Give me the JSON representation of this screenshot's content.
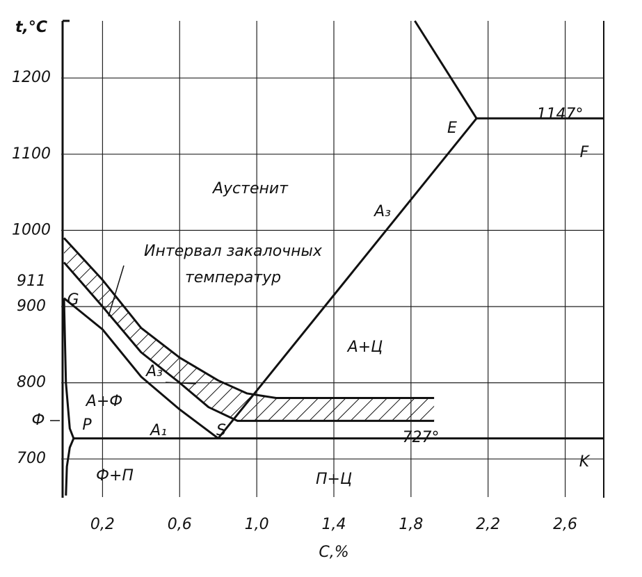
{
  "chart_data": {
    "type": "line",
    "y_label": "t,°C",
    "x_label": "C,%",
    "xlim": [
      0,
      2.8
    ],
    "ylim": [
      650,
      1275
    ],
    "xticks": [
      {
        "value": 0.2,
        "label": "0,2"
      },
      {
        "value": 0.6,
        "label": "0,6"
      },
      {
        "value": 1.0,
        "label": "1,0"
      },
      {
        "value": 1.4,
        "label": "1,4"
      },
      {
        "value": 1.8,
        "label": "1,8"
      },
      {
        "value": 2.2,
        "label": "2,2"
      },
      {
        "value": 2.6,
        "label": "2,6"
      }
    ],
    "yticks": [
      700,
      800,
      900,
      1000,
      1100,
      1200
    ],
    "grid": true,
    "color": "#111111",
    "series": [
      {
        "x": [
          0,
          0.2,
          0.4,
          0.6,
          0.8,
          0.95,
          1.1,
          1.92
        ],
        "values": [
          990,
          935,
          872,
          833,
          803,
          786,
          780,
          780
        ]
      },
      {
        "x": [
          0,
          0.2,
          0.4,
          0.6,
          0.75,
          0.9,
          1.92
        ],
        "values": [
          958,
          900,
          840,
          800,
          768,
          750,
          750
        ]
      },
      {
        "x": [
          0,
          0.2,
          0.4,
          0.6,
          0.8
        ],
        "values": [
          911,
          870,
          808,
          765,
          727
        ]
      },
      {
        "x": [
          0.8,
          2.14
        ],
        "values": [
          727,
          1147
        ]
      },
      {
        "x": [
          2.14,
          1.82
        ],
        "values": [
          1147,
          1275
        ]
      },
      {
        "x": [
          2.14,
          2.8
        ],
        "values": [
          1147,
          1147
        ]
      },
      {
        "x": [
          0.05,
          2.8
        ],
        "values": [
          727,
          727
        ]
      },
      {
        "x": [
          0,
          0.01,
          0.03,
          0.05
        ],
        "values": [
          911,
          800,
          740,
          727
        ]
      },
      {
        "x": [
          0.05,
          0.03,
          0.015,
          0.01
        ],
        "values": [
          727,
          715,
          690,
          652
        ]
      }
    ],
    "annotations": {
      "austenite": "Аустенит",
      "interval_1": "Интервал закалочных",
      "interval_2": "температур",
      "a_f": "А+Ф",
      "f_p": "Ф+П",
      "p_c": "П+Ц",
      "a_c": "А+Ц",
      "a3_upper": "A₃",
      "a3_lower": "A₃",
      "a1": "A₁",
      "E": "E",
      "F": "F",
      "K": "K",
      "S": "S",
      "G": "G",
      "P": "P",
      "t1147": "1147°",
      "t727": "727°",
      "t911": "911",
      "ferrite": "Ф"
    }
  }
}
